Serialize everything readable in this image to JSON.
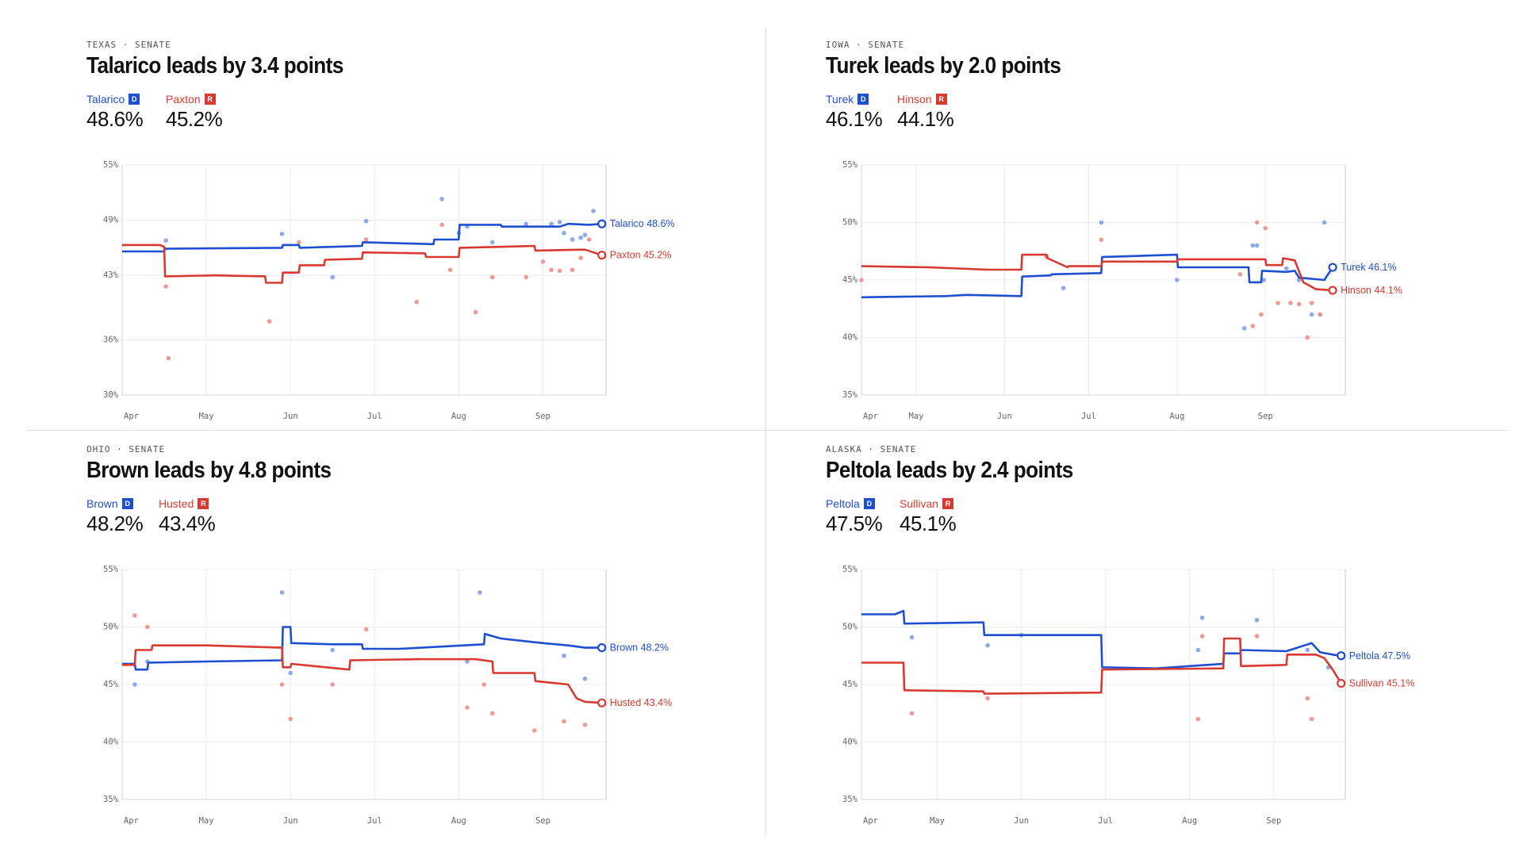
{
  "colors": {
    "dem": "#1f4fd1",
    "rep": "#d93a30",
    "dem_dot": "#7fa0ea",
    "rep_dot": "#ef8f88",
    "grid": "#ececec"
  },
  "panels": [
    {
      "kicker": "TEXAS · SENATE",
      "headline": "Talarico leads by 3.4 points",
      "dem": {
        "name": "Talarico",
        "badge": "D",
        "pct": "48.6%"
      },
      "rep": {
        "name": "Paxton",
        "badge": "R",
        "pct": "45.2%"
      }
    },
    {
      "kicker": "IOWA · SENATE",
      "headline": "Turek leads by 2.0 points",
      "dem": {
        "name": "Turek",
        "badge": "D",
        "pct": "46.1%"
      },
      "rep": {
        "name": "Hinson",
        "badge": "R",
        "pct": "44.1%"
      }
    },
    {
      "kicker": "OHIO · SENATE",
      "headline": "Brown leads by 4.8 points",
      "dem": {
        "name": "Brown",
        "badge": "D",
        "pct": "48.2%"
      },
      "rep": {
        "name": "Husted",
        "badge": "R",
        "pct": "43.4%"
      }
    },
    {
      "kicker": "ALASKA · SENATE",
      "headline": "Peltola leads by 2.4 points",
      "dem": {
        "name": "Peltola",
        "badge": "D",
        "pct": "47.5%"
      },
      "rep": {
        "name": "Sullivan",
        "badge": "R",
        "pct": "45.1%"
      }
    }
  ],
  "chart_data": [
    {
      "type": "line",
      "title": "Talarico leads by 3.4 points",
      "x_unit": "month (Apr = 0)",
      "xlim": [
        0,
        5.75
      ],
      "ylim": [
        30,
        55
      ],
      "y_ticks": [
        30,
        36,
        43,
        49,
        55
      ],
      "y_tick_labels": [
        "30%",
        "36%",
        "43%",
        "49%",
        "55%"
      ],
      "x_ticks": [
        0,
        1,
        2,
        3,
        4,
        5
      ],
      "x_tick_labels": [
        "Apr",
        "May",
        "Jun",
        "Jul",
        "Aug",
        "Sep"
      ],
      "series": [
        {
          "name": "Talarico",
          "party": "D",
          "end_label": "Talarico 48.6%",
          "x": [
            0,
            0.5,
            0.51,
            1.9,
            1.91,
            2.1,
            2.11,
            2.85,
            2.86,
            3.7,
            3.71,
            4.0,
            4.01,
            4.5,
            4.51,
            5.2,
            5.3,
            5.55,
            5.7
          ],
          "y": [
            45.6,
            45.6,
            45.9,
            46.0,
            46.3,
            46.3,
            46.0,
            46.2,
            46.6,
            46.4,
            46.9,
            46.9,
            48.5,
            48.5,
            48.3,
            48.3,
            48.6,
            48.5,
            48.6
          ]
        },
        {
          "name": "Paxton",
          "party": "R",
          "end_label": "Paxton 45.2%",
          "x": [
            0,
            0.45,
            0.5,
            0.51,
            1.1,
            1.11,
            1.7,
            1.71,
            1.9,
            1.91,
            2.1,
            2.11,
            2.4,
            2.41,
            2.85,
            2.86,
            3.6,
            3.61,
            4.0,
            4.01,
            4.9,
            4.91,
            5.5,
            5.7
          ],
          "y": [
            46.3,
            46.3,
            46.1,
            42.9,
            43.0,
            43.0,
            42.9,
            42.2,
            42.2,
            43.3,
            43.3,
            44.1,
            44.1,
            44.7,
            44.8,
            45.5,
            45.4,
            45.0,
            45.0,
            46.0,
            46.2,
            45.7,
            45.8,
            45.2
          ]
        },
        {
          "name": "Talarico polls",
          "party": "D",
          "kind": "scatter",
          "x": [
            0.52,
            1.9,
            2.5,
            2.9,
            3.8,
            4.0,
            4.1,
            4.4,
            4.8,
            5.1,
            5.2,
            5.25,
            5.35,
            5.45,
            5.5,
            5.6
          ],
          "y": [
            46.8,
            47.5,
            42.8,
            48.9,
            51.3,
            47.6,
            48.3,
            46.6,
            48.6,
            48.6,
            48.8,
            47.6,
            46.9,
            47.1,
            47.4,
            50.0
          ]
        },
        {
          "name": "Paxton polls",
          "party": "R",
          "kind": "scatter",
          "x": [
            0.52,
            0.55,
            1.75,
            2.1,
            2.9,
            3.5,
            3.8,
            3.9,
            4.2,
            4.4,
            4.8,
            5.0,
            5.1,
            5.2,
            5.35,
            5.45,
            5.55
          ],
          "y": [
            41.8,
            34.0,
            38.0,
            46.6,
            46.9,
            40.1,
            48.5,
            43.6,
            39.0,
            42.8,
            42.8,
            44.5,
            43.6,
            43.5,
            43.6,
            44.9,
            46.9
          ]
        }
      ]
    },
    {
      "type": "line",
      "title": "Turek leads by 2.0 points",
      "x_unit": "month (Apr = 0)",
      "xlim": [
        0,
        5.75
      ],
      "ylim": [
        35,
        55
      ],
      "y_ticks": [
        35,
        40,
        45,
        50,
        55
      ],
      "y_tick_labels": [
        "35%",
        "40%",
        "45%",
        "50%",
        "55%"
      ],
      "x_ticks": [
        0,
        0.65,
        1.7,
        2.7,
        3.75,
        4.8
      ],
      "x_tick_labels": [
        "Apr",
        "May",
        "Jun",
        "Jul",
        "Aug",
        "Sep"
      ],
      "series": [
        {
          "name": "Turek",
          "party": "D",
          "end_label": "Turek 46.1%",
          "x": [
            0,
            1.0,
            1.25,
            1.9,
            1.91,
            2.25,
            2.26,
            2.85,
            2.86,
            3.75,
            3.76,
            4.6,
            4.61,
            4.75,
            4.76,
            5.05,
            5.15,
            5.2,
            5.35,
            5.5,
            5.6
          ],
          "y": [
            43.5,
            43.6,
            43.7,
            43.6,
            45.3,
            45.4,
            45.5,
            45.6,
            47.0,
            47.2,
            46.1,
            46.1,
            44.8,
            44.8,
            45.8,
            45.7,
            45.8,
            45.2,
            45.1,
            45.0,
            46.1
          ]
        },
        {
          "name": "Hinson",
          "party": "R",
          "end_label": "Hinson 44.1%",
          "x": [
            0,
            0.8,
            1.5,
            1.9,
            1.91,
            2.2,
            2.21,
            2.45,
            2.46,
            2.85,
            2.86,
            3.75,
            3.76,
            4.8,
            4.81,
            5.0,
            5.01,
            5.15,
            5.25,
            5.4,
            5.6
          ],
          "y": [
            46.2,
            46.1,
            45.9,
            45.9,
            47.2,
            47.2,
            46.9,
            46.1,
            46.2,
            46.2,
            46.6,
            46.6,
            46.8,
            46.8,
            46.3,
            46.3,
            46.9,
            46.7,
            44.8,
            44.2,
            44.1
          ]
        },
        {
          "name": "Turek polls",
          "party": "D",
          "kind": "scatter",
          "x": [
            2.4,
            2.85,
            3.75,
            4.55,
            4.65,
            4.7,
            4.78,
            5.05,
            5.2,
            5.35,
            5.45,
            5.5
          ],
          "y": [
            44.3,
            50.0,
            45.0,
            40.8,
            48.0,
            48.0,
            45.0,
            46.0,
            45.0,
            42.0,
            42.0,
            50.0
          ]
        },
        {
          "name": "Hinson polls",
          "party": "R",
          "kind": "scatter",
          "x": [
            0,
            2.2,
            2.85,
            4.5,
            4.65,
            4.7,
            4.75,
            4.8,
            4.95,
            5.1,
            5.2,
            5.3,
            5.35,
            5.45
          ],
          "y": [
            45.0,
            47.0,
            48.5,
            45.5,
            41.0,
            50.0,
            42.0,
            49.5,
            43.0,
            43.0,
            42.9,
            40.0,
            43.0,
            42.0
          ]
        }
      ]
    },
    {
      "type": "line",
      "title": "Brown leads by 4.8 points",
      "x_unit": "month (Apr = 0)",
      "xlim": [
        0,
        5.75
      ],
      "ylim": [
        35,
        55
      ],
      "y_ticks": [
        35,
        40,
        45,
        50,
        55
      ],
      "y_tick_labels": [
        "35%",
        "40%",
        "45%",
        "50%",
        "55%"
      ],
      "x_ticks": [
        0,
        1,
        2,
        3,
        4,
        5
      ],
      "x_tick_labels": [
        "Apr",
        "May",
        "Jun",
        "Jul",
        "Aug",
        "Sep"
      ],
      "series": [
        {
          "name": "Brown",
          "party": "D",
          "end_label": "Brown 48.2%",
          "x": [
            0,
            0.15,
            0.16,
            0.3,
            0.31,
            1.0,
            1.9,
            1.91,
            2.0,
            2.01,
            2.5,
            2.85,
            2.86,
            3.3,
            4.3,
            4.31,
            4.5,
            5.0,
            5.3,
            5.5,
            5.7
          ],
          "y": [
            46.8,
            46.8,
            46.3,
            46.3,
            46.9,
            47.0,
            47.1,
            50.0,
            50.0,
            48.6,
            48.5,
            48.5,
            48.1,
            48.1,
            48.5,
            49.4,
            49.0,
            48.6,
            48.4,
            48.2,
            48.2
          ]
        },
        {
          "name": "Husted",
          "party": "R",
          "end_label": "Husted 43.4%",
          "x": [
            0,
            0.15,
            0.16,
            0.35,
            0.36,
            1.0,
            1.9,
            1.91,
            2.0,
            2.01,
            2.7,
            2.71,
            3.5,
            4.2,
            4.4,
            4.41,
            4.9,
            4.91,
            5.3,
            5.4,
            5.5,
            5.7
          ],
          "y": [
            46.7,
            46.7,
            48.0,
            48.0,
            48.4,
            48.4,
            48.2,
            46.5,
            46.5,
            46.8,
            46.3,
            47.1,
            47.2,
            47.2,
            47.0,
            46.0,
            46.0,
            45.3,
            45.0,
            43.8,
            43.5,
            43.4
          ]
        },
        {
          "name": "Brown polls",
          "party": "D",
          "kind": "scatter",
          "x": [
            0.15,
            0.3,
            1.9,
            2.0,
            2.5,
            4.1,
            4.25,
            5.25,
            5.5
          ],
          "y": [
            45.0,
            47.0,
            53.0,
            46.0,
            48.0,
            47.0,
            53.0,
            47.5,
            45.5
          ]
        },
        {
          "name": "Husted polls",
          "party": "R",
          "kind": "scatter",
          "x": [
            0.15,
            0.3,
            1.9,
            2.0,
            2.5,
            2.9,
            4.1,
            4.3,
            4.4,
            4.9,
            5.25,
            5.5
          ],
          "y": [
            51.0,
            50.0,
            45.0,
            42.0,
            45.0,
            49.8,
            43.0,
            45.0,
            42.5,
            41.0,
            41.8,
            41.5
          ]
        }
      ]
    },
    {
      "type": "line",
      "title": "Peltola leads by 2.4 points",
      "x_unit": "month (Apr = 0)",
      "xlim": [
        0,
        5.75
      ],
      "ylim": [
        35,
        55
      ],
      "y_ticks": [
        35,
        40,
        45,
        50,
        55
      ],
      "y_tick_labels": [
        "35%",
        "40%",
        "45%",
        "50%",
        "55%"
      ],
      "x_ticks": [
        0,
        0.9,
        1.9,
        2.9,
        3.9,
        4.9
      ],
      "x_tick_labels": [
        "Apr",
        "May",
        "Jun",
        "Jul",
        "Aug",
        "Sep"
      ],
      "series": [
        {
          "name": "Peltola",
          "party": "D",
          "end_label": "Peltola 47.5%",
          "x": [
            0,
            0.4,
            0.5,
            0.51,
            1.45,
            1.46,
            2.85,
            2.86,
            3.5,
            4.3,
            4.31,
            4.5,
            4.51,
            5.05,
            5.35,
            5.45,
            5.6,
            5.7
          ],
          "y": [
            51.1,
            51.1,
            51.4,
            50.3,
            50.4,
            49.3,
            49.3,
            46.5,
            46.4,
            46.8,
            47.7,
            47.7,
            48.0,
            47.9,
            48.6,
            47.8,
            47.6,
            47.5
          ]
        },
        {
          "name": "Sullivan",
          "party": "R",
          "end_label": "Sullivan 45.1%",
          "x": [
            0,
            0.5,
            0.51,
            1.45,
            1.46,
            2.85,
            2.86,
            4.3,
            4.31,
            4.5,
            4.51,
            5.05,
            5.06,
            5.4,
            5.5,
            5.6,
            5.7
          ],
          "y": [
            46.9,
            46.9,
            44.5,
            44.4,
            44.2,
            44.3,
            46.3,
            46.4,
            49.0,
            49.0,
            46.6,
            46.7,
            47.6,
            47.6,
            47.3,
            46.3,
            45.1
          ]
        },
        {
          "name": "Peltola polls",
          "party": "D",
          "kind": "scatter",
          "x": [
            0.6,
            1.5,
            1.9,
            4.0,
            4.05,
            4.7,
            5.3,
            5.55
          ],
          "y": [
            49.1,
            48.4,
            49.3,
            48.0,
            50.8,
            50.6,
            48.0,
            46.5
          ]
        },
        {
          "name": "Sullivan polls",
          "party": "R",
          "kind": "scatter",
          "x": [
            0.6,
            1.5,
            4.0,
            4.05,
            4.7,
            5.3,
            5.35
          ],
          "y": [
            42.5,
            43.8,
            42.0,
            49.2,
            49.2,
            43.8,
            42.0
          ]
        }
      ]
    }
  ]
}
